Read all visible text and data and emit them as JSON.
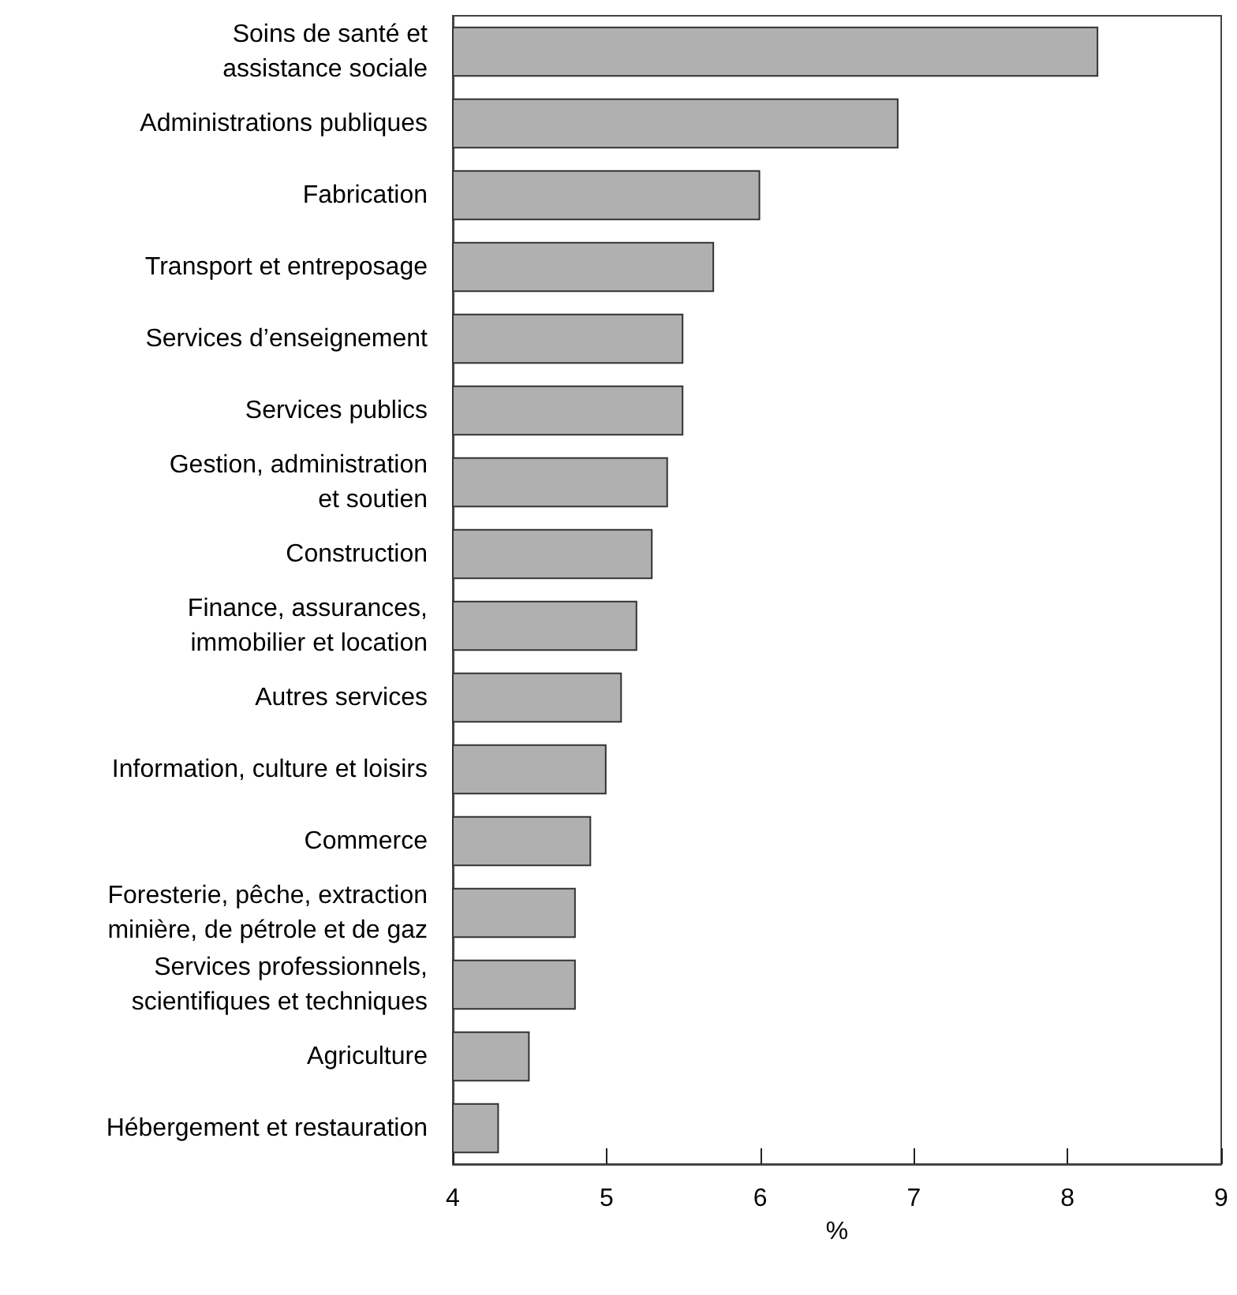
{
  "chart_data": {
    "type": "bar",
    "orientation": "horizontal",
    "xlabel": "%",
    "categories": [
      "Soins de santé et\nassistance sociale",
      "Administrations publiques",
      "Fabrication",
      "Transport et entreposage",
      "Services d’enseignement",
      "Services publics",
      "Gestion, administration\net soutien",
      "Construction",
      "Finance, assurances,\nimmobilier et location",
      "Autres services",
      "Information, culture et loisirs",
      "Commerce",
      "Foresterie, pêche, extraction\nminière, de pétrole et de gaz",
      "Services professionnels,\nscientifiques et techniques",
      "Agriculture",
      "Hébergement et restauration"
    ],
    "values": [
      8.2,
      6.9,
      6.0,
      5.7,
      5.5,
      5.5,
      5.4,
      5.3,
      5.2,
      5.1,
      5.0,
      4.9,
      4.8,
      4.8,
      4.5,
      4.3
    ],
    "color": "#b0b0b0",
    "xlim": [
      4,
      9
    ],
    "xticks": [
      4,
      5,
      6,
      7,
      8,
      9
    ],
    "grid": false
  }
}
